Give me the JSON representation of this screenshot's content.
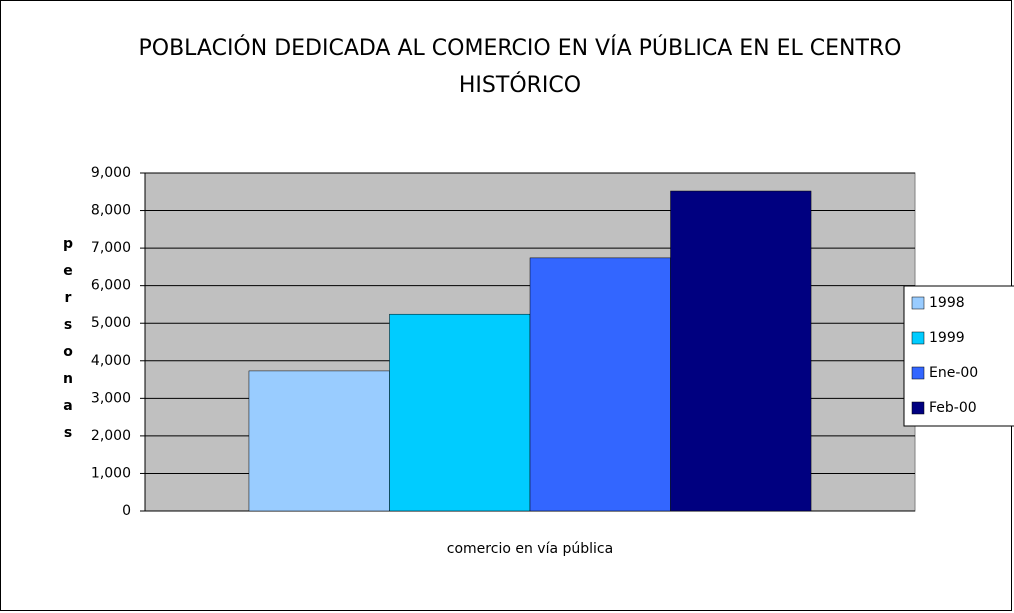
{
  "chart_data": {
    "type": "bar",
    "title": "POBLACIÓN DEDICADA AL COMERCIO EN VÍA PÚBLICA EN EL CENTRO HISTÓRICO",
    "y_label": "personas",
    "categories": [
      "comercio en vía pública"
    ],
    "series": [
      {
        "name": "1998",
        "color": "#99ccff",
        "values": [
          3730
        ]
      },
      {
        "name": "1999",
        "color": "#00ccff",
        "values": [
          5240
        ]
      },
      {
        "name": "Ene-00",
        "color": "#3366ff",
        "values": [
          6740
        ]
      },
      {
        "name": "Feb-00",
        "color": "#000080",
        "values": [
          8520
        ]
      }
    ],
    "ylim": [
      0,
      9000
    ],
    "yticks": [
      0,
      {
        "value": 1000,
        "label": "1,000"
      },
      {
        "value": 2000,
        "label": "2,000"
      },
      {
        "value": 3000,
        "label": "3,000"
      },
      {
        "value": 4000,
        "label": "4,000"
      },
      {
        "value": 5000,
        "label": "5,000"
      },
      {
        "value": 6000,
        "label": "6,000"
      },
      {
        "value": 7000,
        "label": "7,000"
      },
      {
        "value": 8000,
        "label": "8,000"
      },
      {
        "value": 9000,
        "label": "9,000"
      }
    ],
    "grid": true,
    "legend": "right"
  }
}
